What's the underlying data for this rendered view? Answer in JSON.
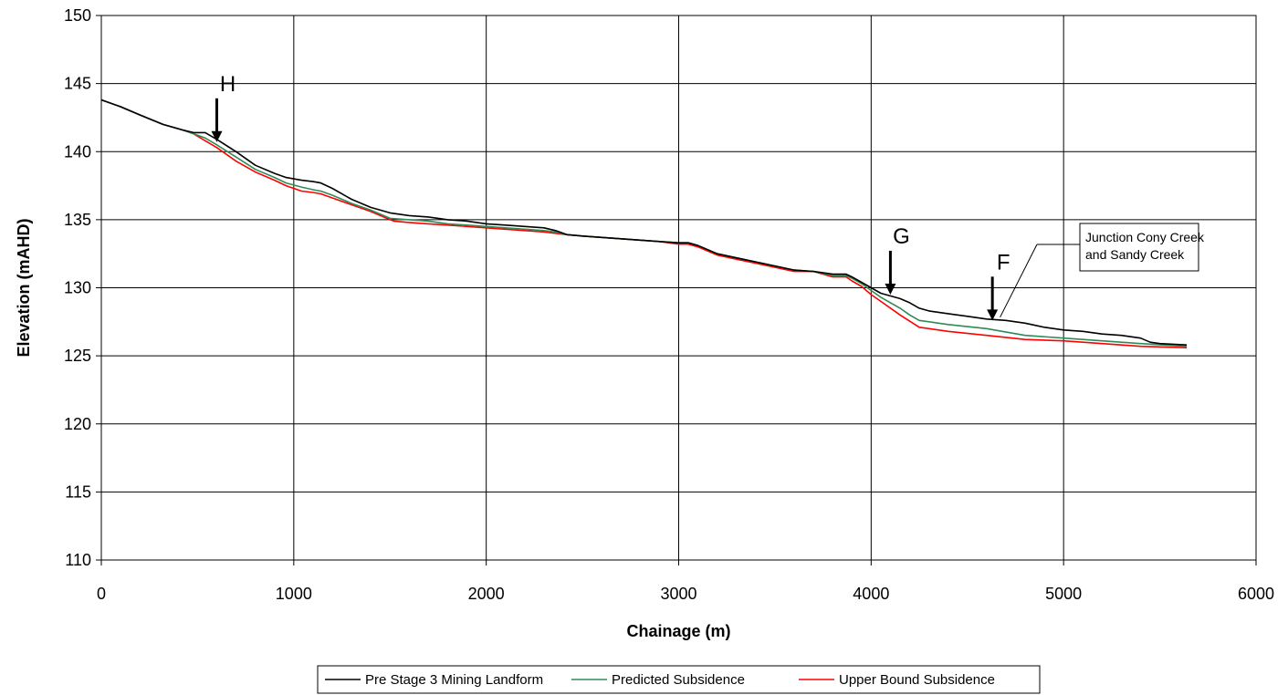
{
  "chart_data": {
    "type": "line",
    "xlabel": "Chainage (m)",
    "ylabel": "Elevation (mAHD)",
    "xlim": [
      0,
      6000
    ],
    "ylim": [
      110,
      150
    ],
    "xticks": [
      0,
      1000,
      2000,
      3000,
      4000,
      5000,
      6000
    ],
    "yticks": [
      110,
      115,
      120,
      125,
      130,
      135,
      140,
      145,
      150
    ],
    "grid": true,
    "legend_position": "bottom",
    "series": [
      {
        "name": "Pre Stage 3 Mining Landform",
        "color": "#000000",
        "x": [
          0,
          100,
          200,
          320,
          420,
          480,
          540,
          600,
          700,
          800,
          900,
          960,
          1040,
          1100,
          1140,
          1200,
          1300,
          1400,
          1500,
          1600,
          1700,
          1800,
          1900,
          2000,
          2100,
          2200,
          2300,
          2360,
          2420,
          2500,
          2600,
          2700,
          2800,
          2900,
          3000,
          3050,
          3100,
          3200,
          3300,
          3400,
          3500,
          3600,
          3700,
          3800,
          3870,
          3900,
          3950,
          4000,
          4050,
          4150,
          4200,
          4250,
          4300,
          4400,
          4500,
          4600,
          4700,
          4800,
          4900,
          5000,
          5100,
          5200,
          5300,
          5400,
          5450,
          5500,
          5640
        ],
        "y": [
          143.8,
          143.3,
          142.7,
          142.0,
          141.6,
          141.4,
          141.4,
          140.9,
          140.0,
          139.0,
          138.4,
          138.1,
          137.9,
          137.8,
          137.7,
          137.3,
          136.5,
          135.9,
          135.5,
          135.3,
          135.2,
          135.0,
          134.9,
          134.7,
          134.6,
          134.5,
          134.4,
          134.2,
          133.9,
          133.8,
          133.7,
          133.6,
          133.5,
          133.4,
          133.3,
          133.3,
          133.1,
          132.5,
          132.2,
          131.9,
          131.6,
          131.3,
          131.2,
          131.0,
          131.0,
          130.8,
          130.4,
          130.0,
          129.6,
          129.2,
          128.9,
          128.5,
          128.3,
          128.1,
          127.9,
          127.7,
          127.6,
          127.4,
          127.1,
          126.9,
          126.8,
          126.6,
          126.5,
          126.3,
          126.0,
          125.9,
          125.8
        ]
      },
      {
        "name": "Predicted Subsidence",
        "color": "#2e8b57",
        "x": [
          0,
          100,
          200,
          320,
          420,
          480,
          540,
          600,
          700,
          800,
          900,
          960,
          1040,
          1100,
          1140,
          1200,
          1300,
          1400,
          1500,
          1600,
          1700,
          1800,
          1900,
          2000,
          2100,
          2200,
          2300,
          2360,
          2420,
          2500,
          2600,
          2700,
          2800,
          2900,
          3000,
          3050,
          3100,
          3200,
          3300,
          3400,
          3500,
          3600,
          3700,
          3800,
          3870,
          3900,
          3950,
          4000,
          4050,
          4150,
          4200,
          4250,
          4400,
          4600,
          4800,
          5000,
          5200,
          5400,
          5640
        ],
        "y": [
          143.8,
          143.3,
          142.7,
          142.0,
          141.6,
          141.3,
          141.0,
          140.5,
          139.6,
          138.7,
          138.1,
          137.7,
          137.4,
          137.2,
          137.1,
          136.8,
          136.2,
          135.7,
          135.1,
          135.0,
          134.9,
          134.7,
          134.6,
          134.5,
          134.4,
          134.3,
          134.2,
          134.1,
          133.9,
          133.8,
          133.7,
          133.6,
          133.5,
          133.4,
          133.3,
          133.3,
          133.1,
          132.5,
          132.2,
          131.9,
          131.6,
          131.3,
          131.2,
          130.9,
          130.9,
          130.7,
          130.3,
          129.8,
          129.3,
          128.5,
          128.0,
          127.6,
          127.3,
          127.0,
          126.5,
          126.3,
          126.1,
          125.9,
          125.7
        ]
      },
      {
        "name": "Upper Bound Subsidence",
        "color": "#ff0000",
        "x": [
          0,
          100,
          200,
          320,
          420,
          480,
          540,
          600,
          700,
          800,
          900,
          960,
          1040,
          1100,
          1140,
          1200,
          1300,
          1400,
          1500,
          1520,
          1600,
          1700,
          1800,
          1900,
          2000,
          2100,
          2200,
          2300,
          2360,
          2420,
          2500,
          2600,
          2700,
          2800,
          2900,
          3000,
          3050,
          3100,
          3200,
          3300,
          3400,
          3500,
          3600,
          3700,
          3800,
          3870,
          3900,
          3950,
          4000,
          4050,
          4150,
          4250,
          4400,
          4600,
          4800,
          5000,
          5200,
          5400,
          5640
        ],
        "y": [
          143.8,
          143.3,
          142.7,
          142.0,
          141.6,
          141.3,
          140.8,
          140.3,
          139.3,
          138.5,
          137.9,
          137.5,
          137.1,
          137.0,
          136.9,
          136.6,
          136.1,
          135.6,
          135.0,
          134.9,
          134.8,
          134.7,
          134.6,
          134.5,
          134.4,
          134.3,
          134.2,
          134.1,
          134.0,
          133.9,
          133.8,
          133.7,
          133.6,
          133.5,
          133.4,
          133.2,
          133.2,
          133.0,
          132.4,
          132.1,
          131.8,
          131.5,
          131.2,
          131.2,
          130.8,
          130.8,
          130.5,
          130.1,
          129.5,
          129.0,
          128.0,
          127.1,
          126.8,
          126.5,
          126.2,
          126.1,
          125.9,
          125.7,
          125.6
        ]
      }
    ],
    "annotations": [
      {
        "label": "H",
        "x": 600,
        "arrow_tip_y": 140.7
      },
      {
        "label": "G",
        "x": 4100,
        "arrow_tip_y": 129.5
      },
      {
        "label": "F",
        "x": 4630,
        "arrow_tip_y": 127.6
      }
    ],
    "callout": {
      "lines": [
        "Junction Cony Creek",
        "and Sandy Creek"
      ],
      "pointer_x": 4670,
      "pointer_y": 127.7
    }
  }
}
